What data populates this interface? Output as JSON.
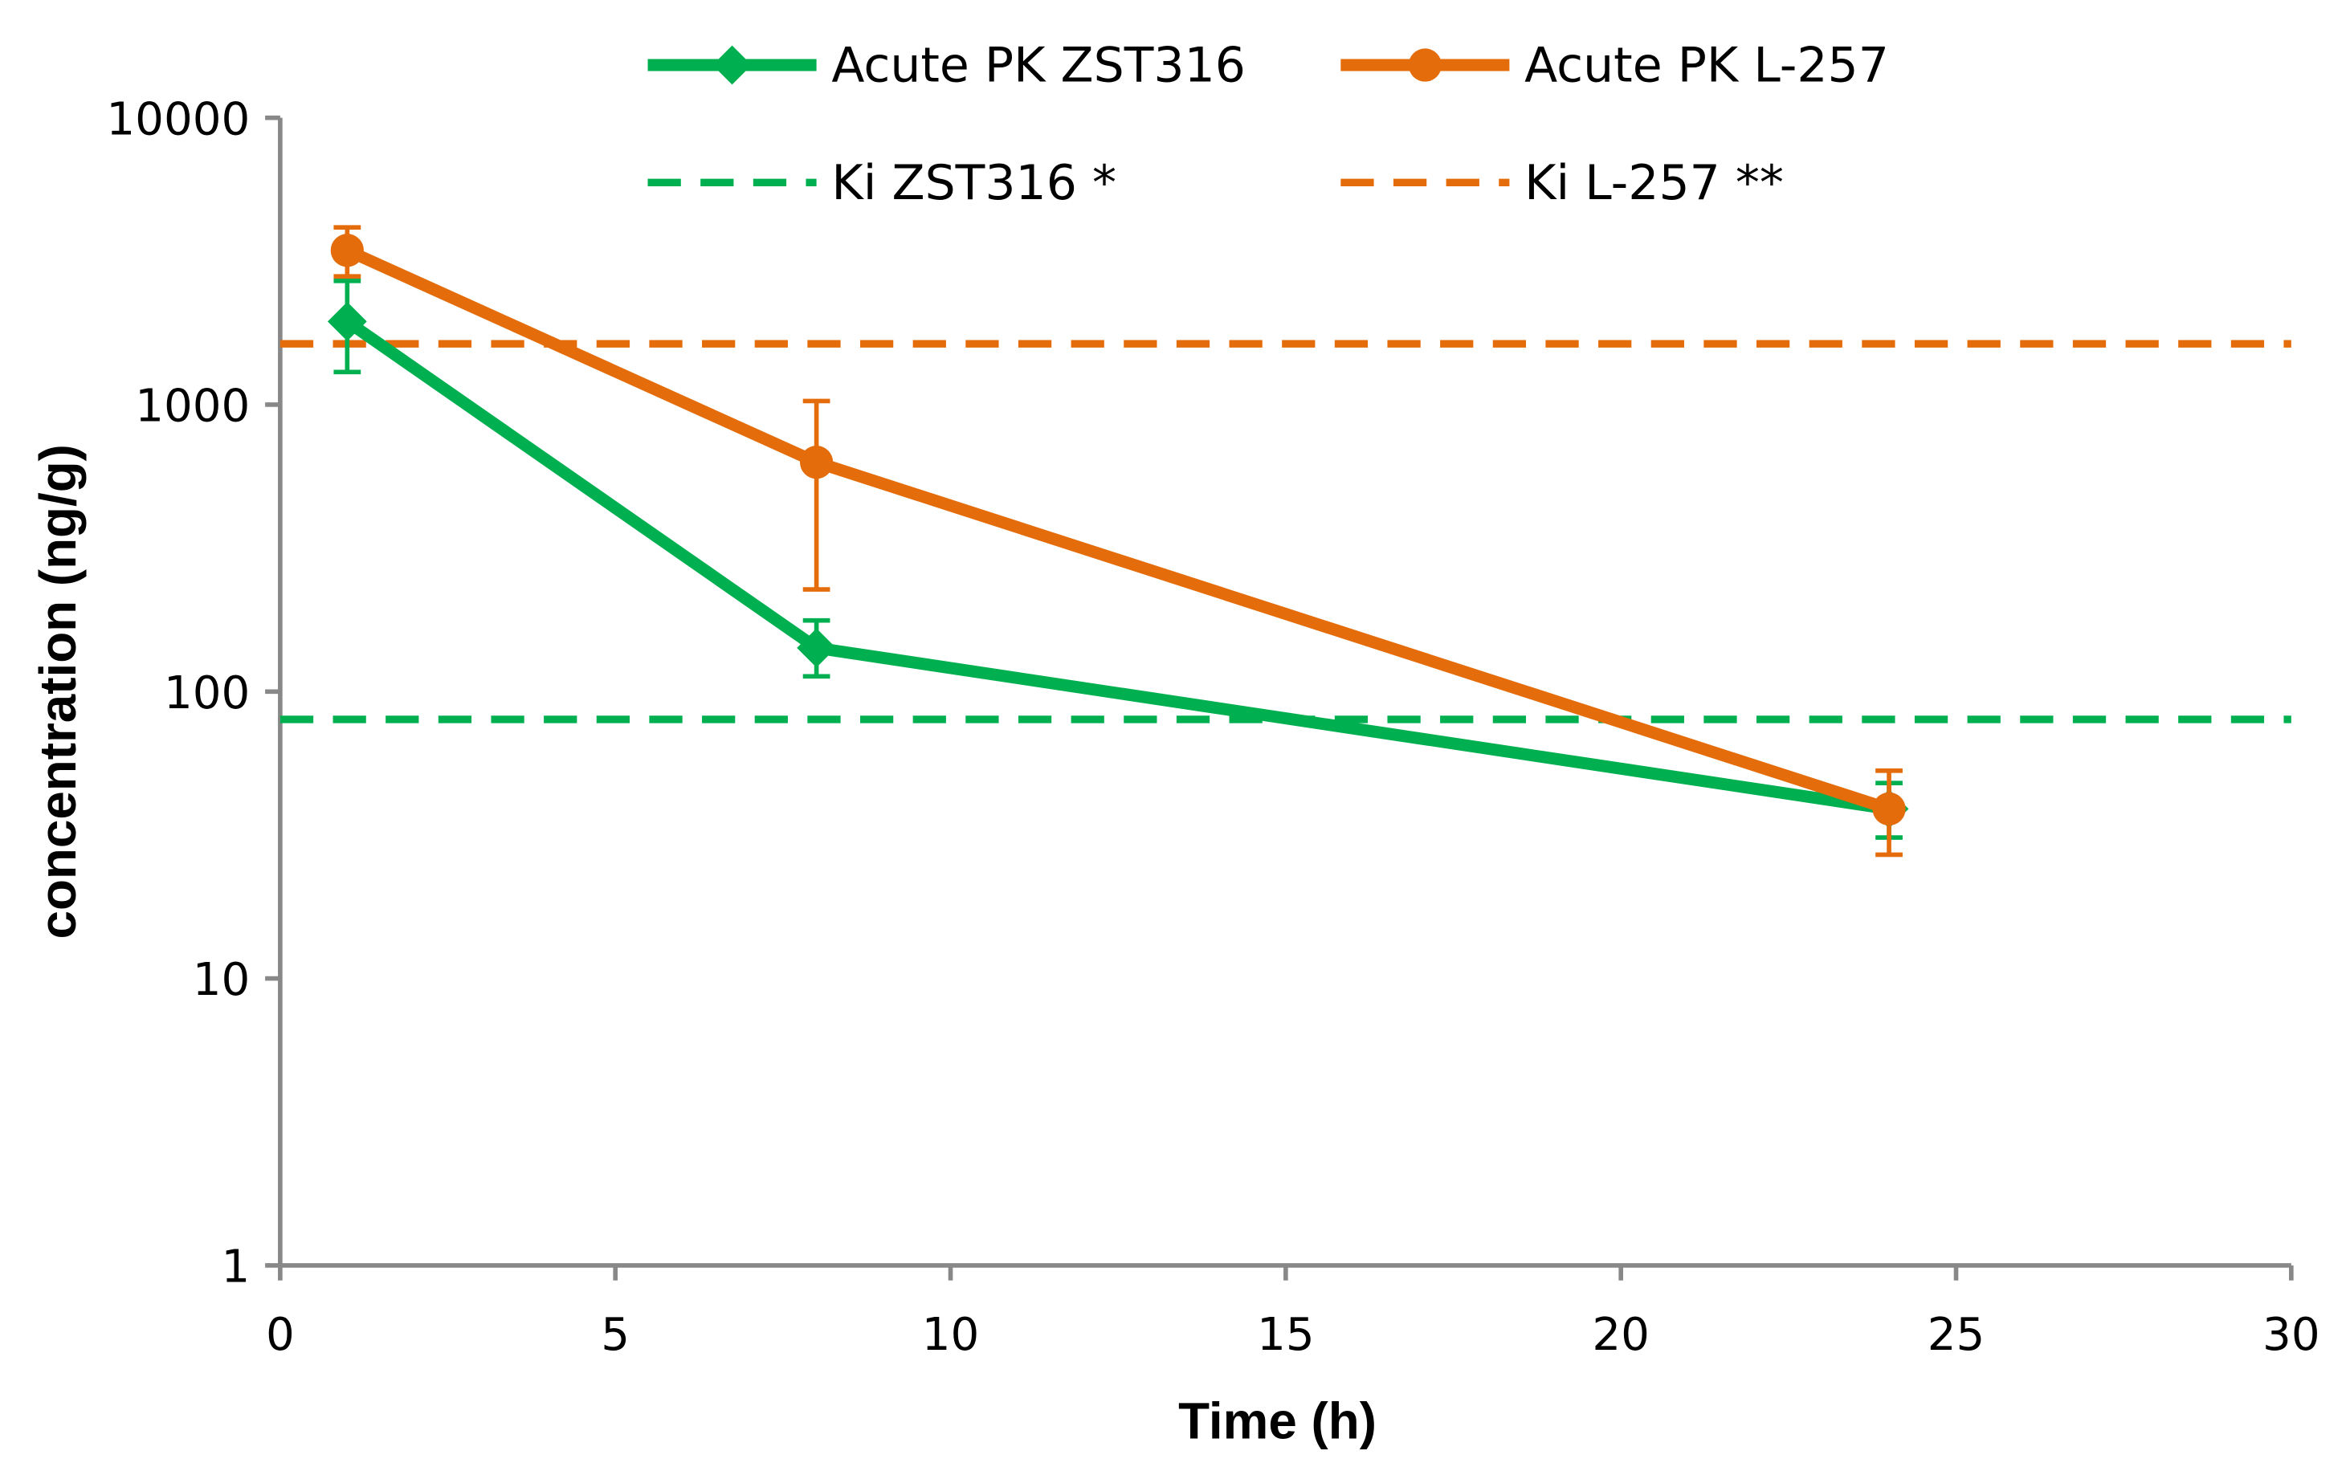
{
  "chart_data": {
    "type": "line",
    "title": "",
    "xlabel": "Time (h)",
    "ylabel": "concentration (ng/g)",
    "xlim": [
      0,
      30
    ],
    "ylim": [
      1,
      10000
    ],
    "yscale": "log",
    "x_ticks": [
      "0",
      "5",
      "10",
      "15",
      "20",
      "25",
      "30"
    ],
    "y_ticks": [
      "1",
      "10",
      "100",
      "1000",
      "10000"
    ],
    "grid": false,
    "legend_placement": "top",
    "series": [
      {
        "name": "Acute PK ZST316",
        "color": "#00B050",
        "marker": "diamond",
        "style": "solid",
        "x": [
          1,
          8,
          24
        ],
        "y": [
          1950,
          142,
          39
        ],
        "err_low": [
          1300,
          113,
          31
        ],
        "err_high": [
          2700,
          177,
          48
        ]
      },
      {
        "name": "Acute PK L-257",
        "color": "#E46C0A",
        "marker": "circle",
        "style": "solid",
        "x": [
          1,
          8,
          24
        ],
        "y": [
          3450,
          630,
          39
        ],
        "err_low": [
          2800,
          227,
          27
        ],
        "err_high": [
          4150,
          1030,
          53
        ]
      },
      {
        "name": "Ki ZST316 *",
        "color": "#00B050",
        "style": "dashed",
        "y_constant": 80
      },
      {
        "name": "Ki L-257 **",
        "color": "#E46C0A",
        "style": "dashed",
        "y_constant": 1630
      }
    ]
  }
}
